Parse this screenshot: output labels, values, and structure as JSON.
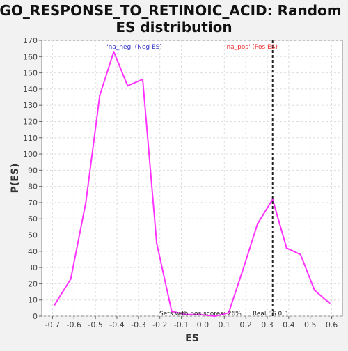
{
  "chart_data": {
    "type": "line",
    "title_line1": "GO_RESPONSE_TO_RETINOIC_ACID: Random",
    "title_line2": "ES distribution",
    "xlabel": "ES",
    "ylabel": "P(ES)",
    "xlim": [
      -0.75,
      0.65
    ],
    "ylim": [
      0,
      170
    ],
    "xticks": [
      "-0.7",
      "-0.6",
      "-0.5",
      "-0.4",
      "-0.3",
      "-0.2",
      "-0.1",
      "0.0",
      "0.1",
      "0.2",
      "0.3",
      "0.4",
      "0.5",
      "0.6"
    ],
    "xtick_values": [
      -0.7,
      -0.6,
      -0.5,
      -0.4,
      -0.3,
      -0.2,
      -0.1,
      0.0,
      0.1,
      0.2,
      0.3,
      0.4,
      0.5,
      0.6
    ],
    "yticks": [
      "0",
      "10",
      "20",
      "30",
      "40",
      "50",
      "60",
      "70",
      "80",
      "90",
      "100",
      "110",
      "120",
      "130",
      "140",
      "150",
      "160",
      "170"
    ],
    "ytick_values": [
      0,
      10,
      20,
      30,
      40,
      50,
      60,
      70,
      80,
      90,
      100,
      110,
      120,
      130,
      140,
      150,
      160,
      170
    ],
    "grid": true,
    "series": [
      {
        "color": "#ff33ff",
        "x": [
          -0.69,
          -0.615,
          -0.545,
          -0.48,
          -0.415,
          -0.35,
          -0.28,
          -0.215,
          -0.145,
          -0.08,
          -0.01,
          0.055,
          0.12,
          0.19,
          0.255,
          0.325,
          0.39,
          0.455,
          0.52,
          0.59
        ],
        "y": [
          7,
          23,
          70,
          136,
          163,
          142,
          146,
          45,
          3,
          1,
          1,
          0,
          2,
          30,
          57,
          72,
          42,
          38,
          16,
          8
        ]
      }
    ],
    "vline": {
      "x": 0.325,
      "label": "Real ES 0.3",
      "color": "#222222"
    },
    "annotations": {
      "neg_label": "'na_neg' (Neg ES)",
      "neg_color": "#3333cc",
      "pos_label": "'na_pos' (Pos ES)",
      "pos_color": "#ee3333",
      "sets_text": "Sets with pos scores: 26%"
    }
  }
}
